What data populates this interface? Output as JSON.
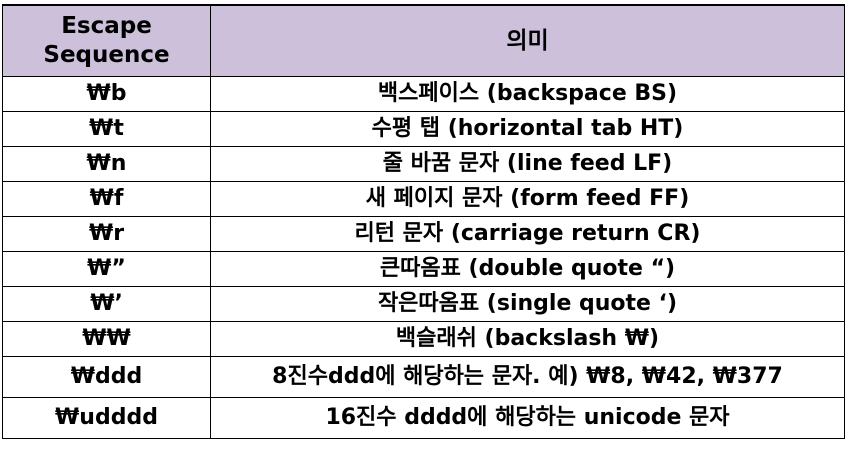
{
  "table": {
    "headers": {
      "escape_line1": "Escape",
      "escape_line2": "Sequence",
      "meaning": "의미"
    },
    "rows": [
      {
        "escape": "₩b",
        "meaning": "백스페이스 (backspace BS)"
      },
      {
        "escape": "₩t",
        "meaning": "수평 탭 (horizontal tab HT)"
      },
      {
        "escape": "₩n",
        "meaning": "줄 바꿈 문자 (line feed LF)"
      },
      {
        "escape": "₩f",
        "meaning": "새 페이지 문자 (form feed FF)"
      },
      {
        "escape": "₩r",
        "meaning": "리턴 문자 (carriage return CR)"
      },
      {
        "escape": "₩”",
        "meaning": "큰따옴표 (double quote “)"
      },
      {
        "escape": "₩’",
        "meaning": "작은따옴표 (single quote ‘)"
      },
      {
        "escape": "₩₩",
        "meaning": "백슬래쉬 (backslash ₩)"
      },
      {
        "escape": "₩ddd",
        "meaning": "8진수ddd에 해당하는  문자. 예) ₩8, ₩42, ₩377"
      },
      {
        "escape": "₩udddd",
        "meaning": "16진수 dddd에 해당하는 unicode 문자"
      }
    ]
  },
  "colors": {
    "header_background": "#ccc0da",
    "border": "#000000",
    "text": "#000000"
  }
}
